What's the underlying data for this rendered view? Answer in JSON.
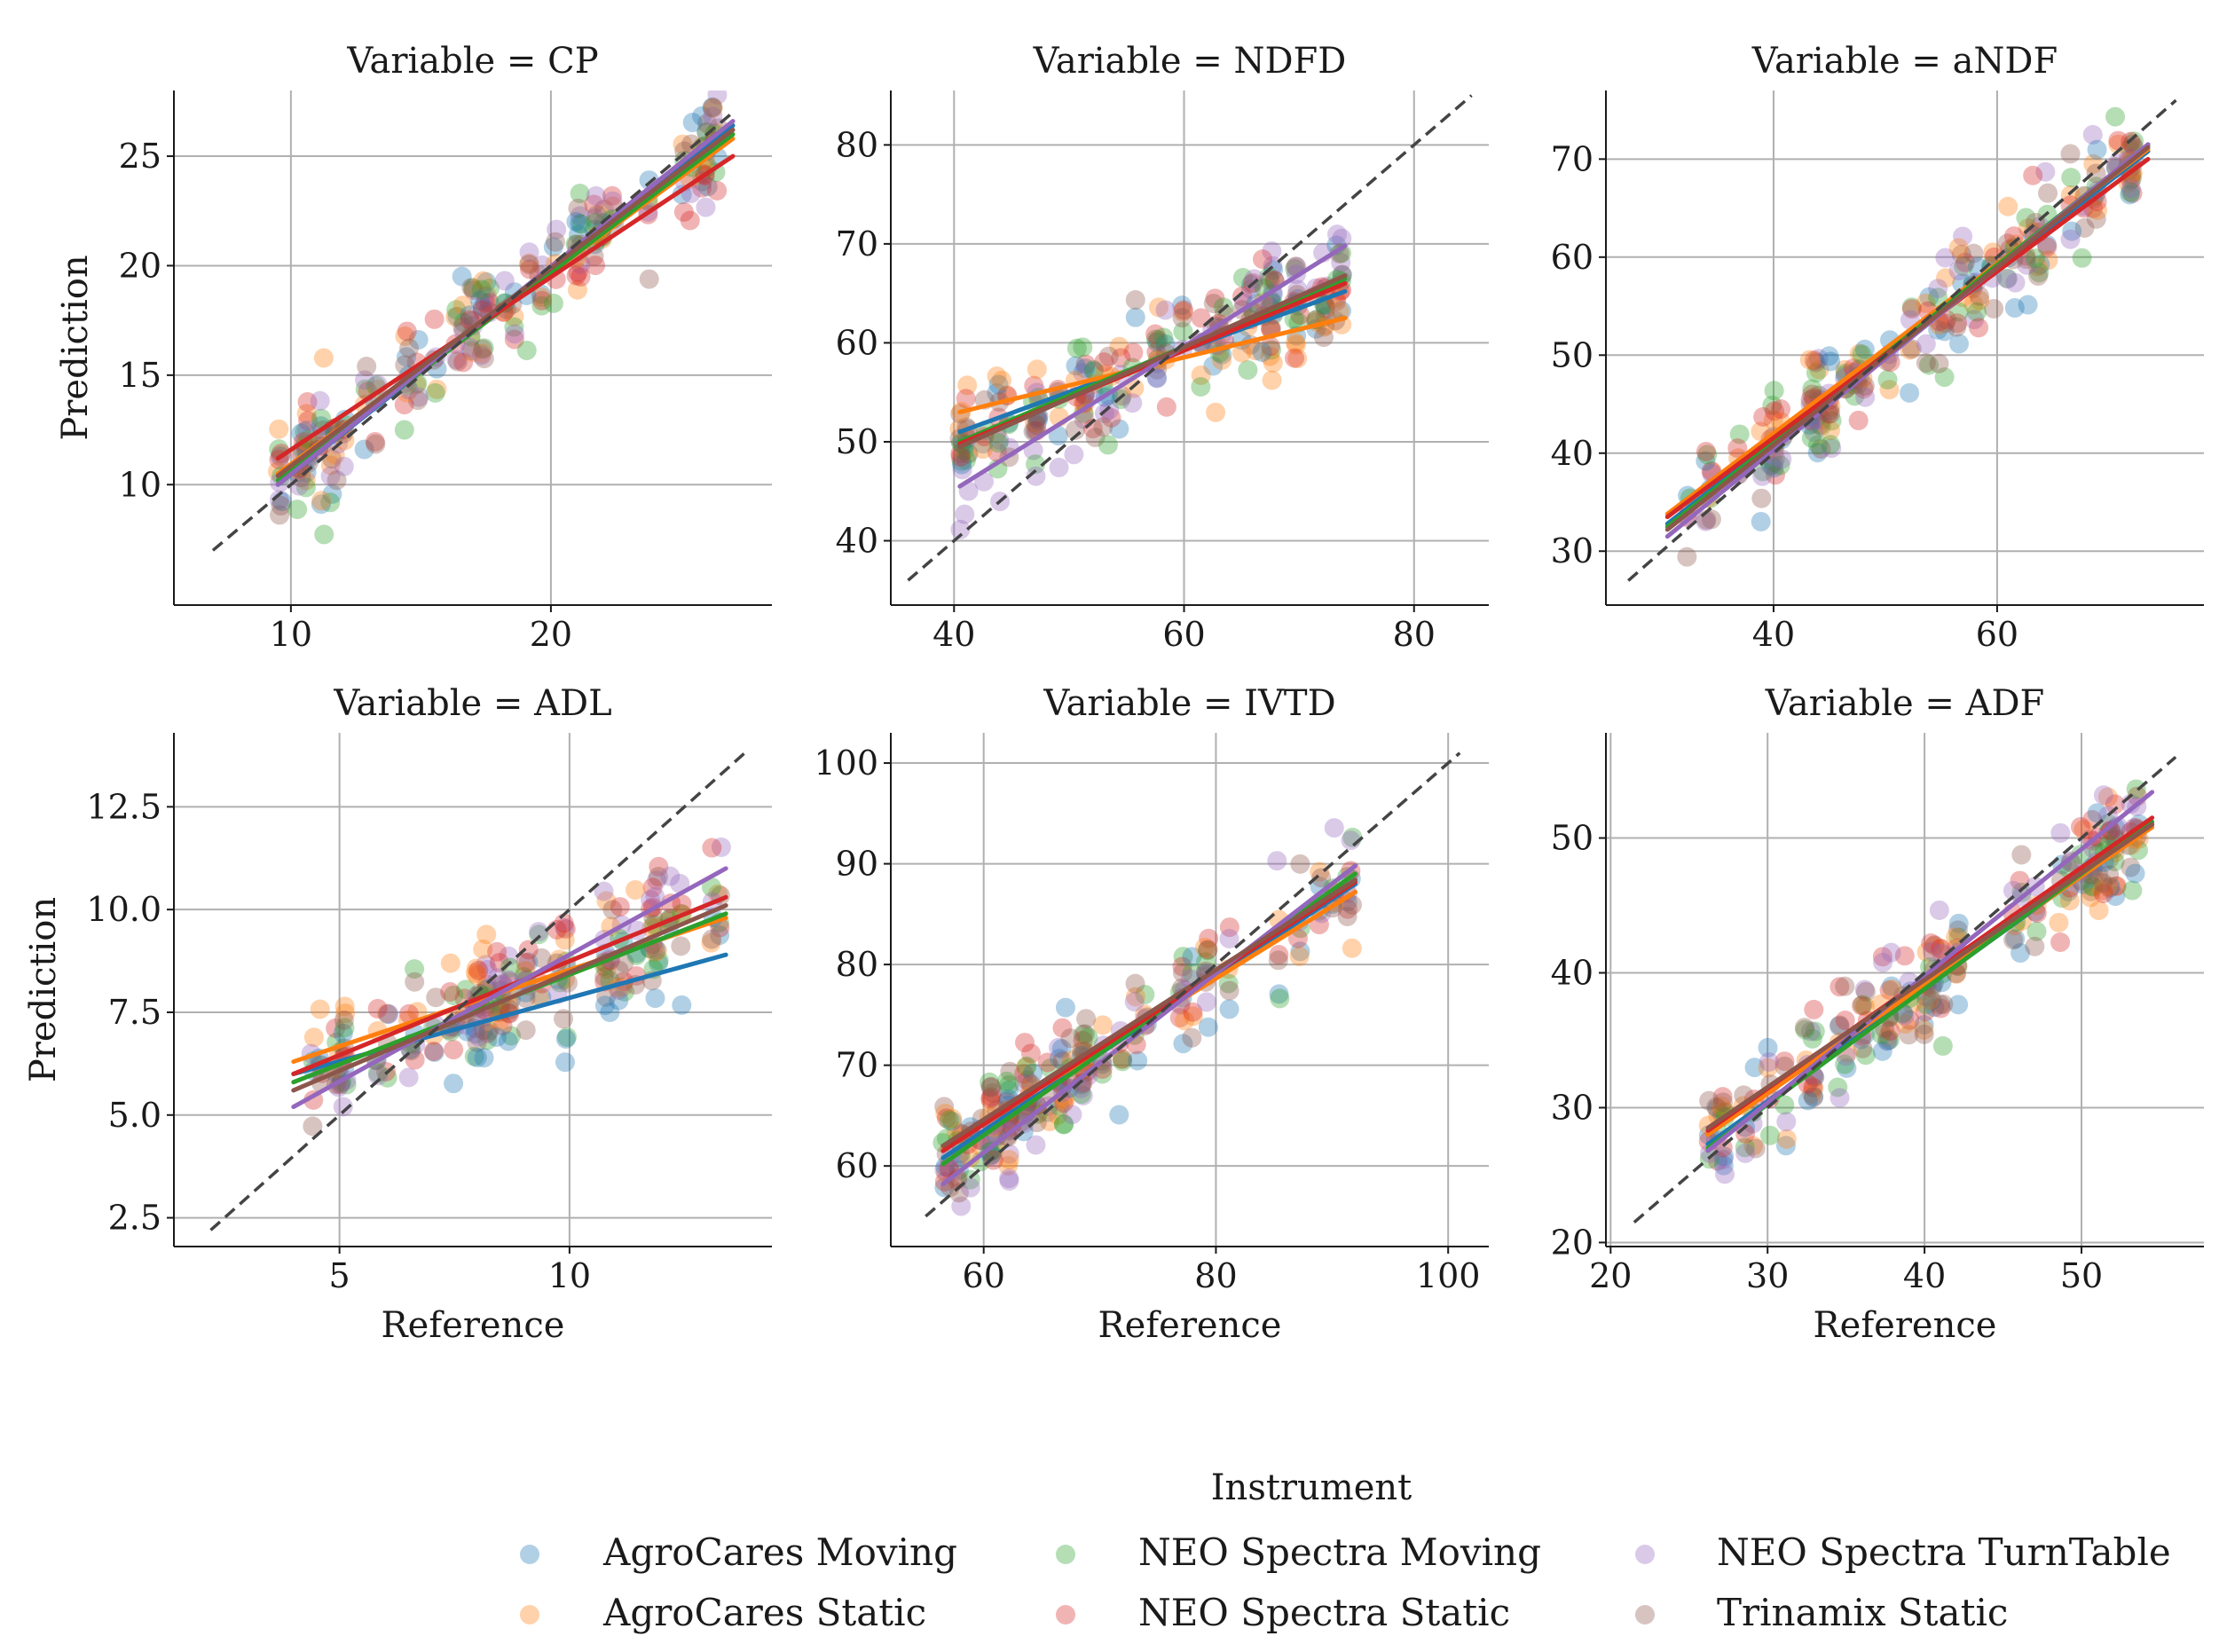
{
  "legend": {
    "title": "Instrument",
    "items": [
      {
        "key": "agm",
        "label": "AgroCares Moving",
        "color": "#1f77b4"
      },
      {
        "key": "ags",
        "label": "AgroCares Static",
        "color": "#ff7f0e"
      },
      {
        "key": "nem",
        "label": "NEO Spectra Moving",
        "color": "#2ca02c"
      },
      {
        "key": "nes",
        "label": "NEO Spectra Static",
        "color": "#d62728"
      },
      {
        "key": "net",
        "label": "NEO Spectra TurnTable",
        "color": "#9467bd"
      },
      {
        "key": "tri",
        "label": "Trinamix Static",
        "color": "#8c564b"
      }
    ]
  },
  "chart_data": [
    {
      "type": "scatter",
      "title": "Variable = CP",
      "xlabel": "",
      "ylabel": "Prediction",
      "xlim": [
        5.5,
        28.5
      ],
      "ylim": [
        4.5,
        28
      ],
      "xticks": [
        10,
        20
      ],
      "yticks": [
        10,
        15,
        20,
        25
      ],
      "ref_range": [
        7,
        27
      ],
      "sample_count": 45,
      "fits": [
        {
          "key": "agm",
          "x": [
            9.5,
            27
          ],
          "y": [
            10.0,
            26.4
          ]
        },
        {
          "key": "ags",
          "x": [
            9.5,
            27
          ],
          "y": [
            10.5,
            25.8
          ]
        },
        {
          "key": "nem",
          "x": [
            9.5,
            27
          ],
          "y": [
            10.2,
            26.0
          ]
        },
        {
          "key": "nes",
          "x": [
            9.5,
            27
          ],
          "y": [
            11.2,
            25.0
          ]
        },
        {
          "key": "net",
          "x": [
            9.5,
            27
          ],
          "y": [
            10.0,
            26.6
          ]
        },
        {
          "key": "tri",
          "x": [
            9.5,
            27
          ],
          "y": [
            10.4,
            26.2
          ]
        }
      ]
    },
    {
      "type": "scatter",
      "title": "Variable = NDFD",
      "xlabel": "",
      "ylabel": "",
      "xlim": [
        34.5,
        86.5
      ],
      "ylim": [
        33.5,
        85.5
      ],
      "xticks": [
        40,
        60,
        80
      ],
      "yticks": [
        40,
        50,
        60,
        70,
        80
      ],
      "ref_range": [
        36,
        85
      ],
      "sample_count": 45,
      "fits": [
        {
          "key": "agm",
          "x": [
            40.5,
            74
          ],
          "y": [
            51.0,
            65.2
          ]
        },
        {
          "key": "ags",
          "x": [
            40.5,
            74
          ],
          "y": [
            53.0,
            62.5
          ]
        },
        {
          "key": "nem",
          "x": [
            40.5,
            74
          ],
          "y": [
            50.0,
            66.5
          ]
        },
        {
          "key": "nes",
          "x": [
            40.5,
            74
          ],
          "y": [
            49.8,
            66.0
          ]
        },
        {
          "key": "net",
          "x": [
            40.5,
            74
          ],
          "y": [
            45.5,
            69.8
          ]
        },
        {
          "key": "tri",
          "x": [
            40.5,
            74
          ],
          "y": [
            49.5,
            66.8
          ]
        }
      ]
    },
    {
      "type": "scatter",
      "title": "Variable = aNDF",
      "xlabel": "",
      "ylabel": "",
      "xlim": [
        25,
        78.5
      ],
      "ylim": [
        24.5,
        77
      ],
      "xticks": [
        40,
        60
      ],
      "yticks": [
        30,
        40,
        50,
        60,
        70
      ],
      "ref_range": [
        27,
        76
      ],
      "sample_count": 45,
      "fits": [
        {
          "key": "agm",
          "x": [
            30.5,
            73.5
          ],
          "y": [
            32.8,
            70.8
          ]
        },
        {
          "key": "ags",
          "x": [
            30.5,
            73.5
          ],
          "y": [
            33.8,
            71.0
          ]
        },
        {
          "key": "nem",
          "x": [
            30.5,
            73.5
          ],
          "y": [
            32.5,
            71.4
          ]
        },
        {
          "key": "nes",
          "x": [
            30.5,
            73.5
          ],
          "y": [
            33.5,
            70.0
          ]
        },
        {
          "key": "net",
          "x": [
            30.5,
            73.5
          ],
          "y": [
            31.5,
            71.5
          ]
        },
        {
          "key": "tri",
          "x": [
            30.5,
            73.5
          ],
          "y": [
            32.2,
            71.2
          ]
        }
      ]
    },
    {
      "type": "scatter",
      "title": "Variable = ADL",
      "xlabel": "Reference",
      "ylabel": "Prediction",
      "xlim": [
        1.4,
        14.4
      ],
      "ylim": [
        1.8,
        14.3
      ],
      "xticks": [
        5,
        10
      ],
      "yticks": [
        2.5,
        5.0,
        7.5,
        10.0,
        12.5
      ],
      "ytick_labels": [
        "2.5",
        "5.0",
        "7.5",
        "10.0",
        "12.5"
      ],
      "ref_range": [
        2.2,
        13.9
      ],
      "sample_count": 45,
      "fits": [
        {
          "key": "agm",
          "x": [
            4,
            13.4
          ],
          "y": [
            6.0,
            8.9
          ]
        },
        {
          "key": "ags",
          "x": [
            4,
            13.4
          ],
          "y": [
            6.3,
            9.8
          ]
        },
        {
          "key": "nem",
          "x": [
            4,
            13.4
          ],
          "y": [
            5.8,
            9.9
          ]
        },
        {
          "key": "nes",
          "x": [
            4,
            13.4
          ],
          "y": [
            6.0,
            10.3
          ]
        },
        {
          "key": "net",
          "x": [
            4,
            13.4
          ],
          "y": [
            5.2,
            11.0
          ]
        },
        {
          "key": "tri",
          "x": [
            4,
            13.4
          ],
          "y": [
            5.6,
            10.1
          ]
        }
      ]
    },
    {
      "type": "scatter",
      "title": "Variable = IVTD",
      "xlabel": "Reference",
      "ylabel": "",
      "xlim": [
        52,
        103.5
      ],
      "ylim": [
        52,
        103
      ],
      "xticks": [
        60,
        80,
        100
      ],
      "yticks": [
        60,
        70,
        80,
        90,
        100
      ],
      "ref_range": [
        55,
        101
      ],
      "sample_count": 45,
      "fits": [
        {
          "key": "agm",
          "x": [
            56.5,
            92
          ],
          "y": [
            60.8,
            88.0
          ]
        },
        {
          "key": "ags",
          "x": [
            56.5,
            92
          ],
          "y": [
            61.8,
            87.2
          ]
        },
        {
          "key": "nem",
          "x": [
            56.5,
            92
          ],
          "y": [
            60.2,
            89.0
          ]
        },
        {
          "key": "nes",
          "x": [
            56.5,
            92
          ],
          "y": [
            61.5,
            88.2
          ]
        },
        {
          "key": "net",
          "x": [
            56.5,
            92
          ],
          "y": [
            58.2,
            89.8
          ]
        },
        {
          "key": "tri",
          "x": [
            56.5,
            92
          ],
          "y": [
            62.0,
            88.4
          ]
        }
      ]
    },
    {
      "type": "scatter",
      "title": "Variable = ADF",
      "xlabel": "Reference",
      "ylabel": "",
      "xlim": [
        19.7,
        57.8
      ],
      "ylim": [
        19.7,
        57.8
      ],
      "xticks": [
        20,
        30,
        40,
        50
      ],
      "yticks": [
        20,
        30,
        40,
        50
      ],
      "ref_range": [
        21.5,
        56
      ],
      "sample_count": 45,
      "fits": [
        {
          "key": "agm",
          "x": [
            26.2,
            54.5
          ],
          "y": [
            27.3,
            51.0
          ]
        },
        {
          "key": "ags",
          "x": [
            26.2,
            54.5
          ],
          "y": [
            28.0,
            50.8
          ]
        },
        {
          "key": "nem",
          "x": [
            26.2,
            54.5
          ],
          "y": [
            27.0,
            51.2
          ]
        },
        {
          "key": "nes",
          "x": [
            26.2,
            54.5
          ],
          "y": [
            28.3,
            51.5
          ]
        },
        {
          "key": "net",
          "x": [
            26.2,
            54.5
          ],
          "y": [
            26.8,
            53.4
          ]
        },
        {
          "key": "tri",
          "x": [
            26.2,
            54.5
          ],
          "y": [
            28.5,
            51.0
          ]
        }
      ]
    }
  ]
}
